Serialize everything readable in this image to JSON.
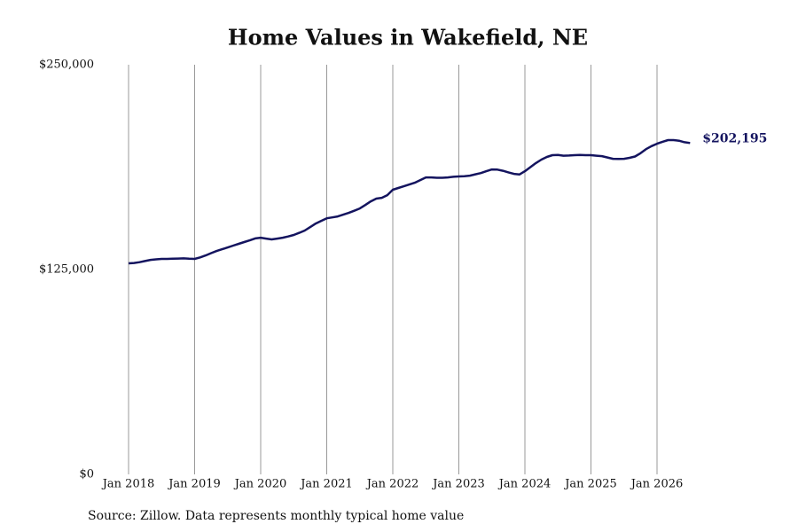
{
  "chart_data": {
    "type": "line",
    "title": "Home Values in Wakefield, NE",
    "source": "Source: Zillow. Data represents monthly typical home value",
    "x": [
      "2018-01",
      "2018-02",
      "2018-03",
      "2018-04",
      "2018-05",
      "2018-06",
      "2018-07",
      "2018-08",
      "2018-09",
      "2018-10",
      "2018-11",
      "2018-12",
      "2019-01",
      "2019-02",
      "2019-03",
      "2019-04",
      "2019-05",
      "2019-06",
      "2019-07",
      "2019-08",
      "2019-09",
      "2019-10",
      "2019-11",
      "2019-12",
      "2020-01",
      "2020-02",
      "2020-03",
      "2020-04",
      "2020-05",
      "2020-06",
      "2020-07",
      "2020-08",
      "2020-09",
      "2020-10",
      "2020-11",
      "2020-12",
      "2021-01",
      "2021-02",
      "2021-03",
      "2021-04",
      "2021-05",
      "2021-06",
      "2021-07",
      "2021-08",
      "2021-09",
      "2021-10",
      "2021-11",
      "2021-12",
      "2022-01",
      "2022-02",
      "2022-03",
      "2022-04",
      "2022-05",
      "2022-06",
      "2022-07",
      "2022-08",
      "2022-09",
      "2022-10",
      "2022-11",
      "2022-12",
      "2023-01",
      "2023-02",
      "2023-03",
      "2023-04",
      "2023-05",
      "2023-06",
      "2023-07",
      "2023-08",
      "2023-09",
      "2023-10",
      "2023-11",
      "2023-12",
      "2024-01",
      "2024-02",
      "2024-03",
      "2024-04",
      "2024-05",
      "2024-06",
      "2024-07",
      "2024-08",
      "2024-09",
      "2024-10",
      "2024-11",
      "2024-12",
      "2025-01",
      "2025-02",
      "2025-03",
      "2025-04",
      "2025-05",
      "2025-06",
      "2025-07",
      "2025-08",
      "2025-09",
      "2025-10",
      "2025-11",
      "2025-12",
      "2026-01",
      "2026-02",
      "2026-03",
      "2026-04",
      "2026-05",
      "2026-06",
      "2026-07"
    ],
    "series": [
      {
        "color": "#14145f",
        "values": [
          128800,
          129000,
          129500,
          130200,
          130900,
          131200,
          131500,
          131500,
          131600,
          131700,
          131800,
          131600,
          131500,
          132400,
          133600,
          135000,
          136300,
          137400,
          138500,
          139600,
          140700,
          141800,
          142800,
          144000,
          144400,
          143900,
          143400,
          143900,
          144400,
          145200,
          146100,
          147400,
          148800,
          150900,
          153100,
          154700,
          156300,
          156800,
          157400,
          158500,
          159600,
          160900,
          162300,
          164400,
          166600,
          168300,
          168800,
          170400,
          173700,
          174800,
          175800,
          176900,
          178000,
          179600,
          181200,
          181200,
          181000,
          181000,
          181200,
          181600,
          181800,
          182000,
          182300,
          183100,
          183900,
          185000,
          186100,
          186000,
          185300,
          184300,
          183400,
          183000,
          185000,
          187500,
          190000,
          192100,
          193700,
          194800,
          194900,
          194500,
          194600,
          194800,
          194900,
          194800,
          194800,
          194500,
          194200,
          193400,
          192600,
          192500,
          192600,
          193200,
          194000,
          196000,
          198500,
          200300,
          201800,
          203000,
          204000,
          204000,
          203600,
          202700,
          202195
        ]
      }
    ],
    "annotation": "$202,195",
    "ylim": [
      0,
      250000
    ],
    "yticks": [
      {
        "value": 0,
        "label": "$0"
      },
      {
        "value": 125000,
        "label": "$125,000"
      },
      {
        "value": 250000,
        "label": "$250,000"
      }
    ],
    "xticks": [
      {
        "value": "2018-01",
        "label": "Jan 2018"
      },
      {
        "value": "2019-01",
        "label": "Jan 2019"
      },
      {
        "value": "2020-01",
        "label": "Jan 2020"
      },
      {
        "value": "2021-01",
        "label": "Jan 2021"
      },
      {
        "value": "2022-01",
        "label": "Jan 2022"
      },
      {
        "value": "2023-01",
        "label": "Jan 2023"
      },
      {
        "value": "2024-01",
        "label": "Jan 2024"
      },
      {
        "value": "2025-01",
        "label": "Jan 2025"
      },
      {
        "value": "2026-01",
        "label": "Jan 2026"
      }
    ],
    "grid": "x"
  }
}
